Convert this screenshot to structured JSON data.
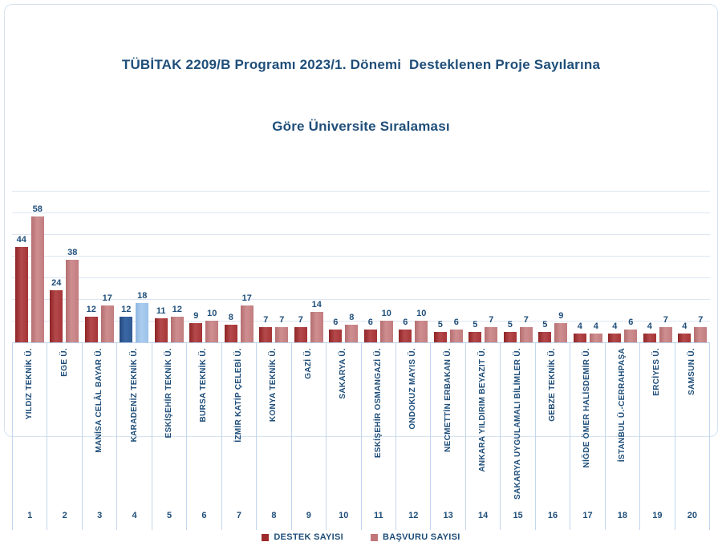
{
  "title": {
    "line1": "TÜBİTAK 2209/B Programı 2023/1. Dönemi  Desteklenen Proje Sayılarına",
    "line2": "Göre Üniversite Sıralaması"
  },
  "legend": {
    "items": [
      {
        "label": "DESTEK SAYISI",
        "color": "#9E2A2C"
      },
      {
        "label": "BAŞVURU SAYISI",
        "color": "#C17779"
      }
    ]
  },
  "chart_data": {
    "type": "bar",
    "title": "TÜBİTAK 2209/B Programı 2023/1. Dönemi Desteklenen Proje Sayılarına Göre Üniversite Sıralaması",
    "categories": [
      "YILDIZ TEKNİK Ü.",
      "EGE Ü.",
      "MANİSA CELÂL BAYAR Ü.",
      "KARADENİZ TEKNİK Ü.",
      "ESKİŞEHİR TEKNİK Ü.",
      "BURSA TEKNİK Ü.",
      "İZMİR KATİP ÇELEBİ Ü.",
      "KONYA TEKNİK Ü.",
      "GAZİ Ü.",
      "SAKARYA Ü.",
      "ESKİŞEHİR OSMANGAZİ Ü.",
      "ONDOKUZ MAYIS Ü.",
      "NECMETTİN ERBAKAN Ü.",
      "ANKARA YILDIRIM BEYAZIT Ü.",
      "SAKARYA UYGULAMALI BİLİMLER Ü.",
      "GEBZE TEKNİK Ü.",
      "NİĞDE ÖMER HALİSDEMİR Ü.",
      "İSTANBUL Ü.-CERRAHPAŞA",
      "ERCİYES Ü.",
      "SAMSUN Ü."
    ],
    "ranks": [
      1,
      2,
      3,
      4,
      5,
      6,
      7,
      8,
      9,
      10,
      11,
      12,
      13,
      14,
      15,
      16,
      17,
      18,
      19,
      20
    ],
    "series": [
      {
        "name": "DESTEK SAYISI",
        "values": [
          44,
          24,
          12,
          12,
          11,
          9,
          8,
          7,
          7,
          6,
          6,
          6,
          5,
          5,
          5,
          5,
          4,
          4,
          4,
          4
        ]
      },
      {
        "name": "BAŞVURU SAYISI",
        "values": [
          58,
          38,
          17,
          18,
          12,
          10,
          17,
          7,
          14,
          8,
          10,
          10,
          6,
          7,
          7,
          9,
          4,
          6,
          7,
          7
        ]
      }
    ],
    "highlight_index": 3,
    "ylim": [
      0,
      70
    ],
    "gridline_step": 10,
    "grid": true,
    "legend_position": "bottom",
    "xlabel": "",
    "ylabel": "",
    "colors": {
      "destek": "#A63537",
      "basvuru": "#C27D7F",
      "destek_highlight": "#2F5992",
      "basvuru_highlight": "#9CC2E8",
      "text": "#1F4E79",
      "gridline": "#DCE6F2"
    }
  }
}
